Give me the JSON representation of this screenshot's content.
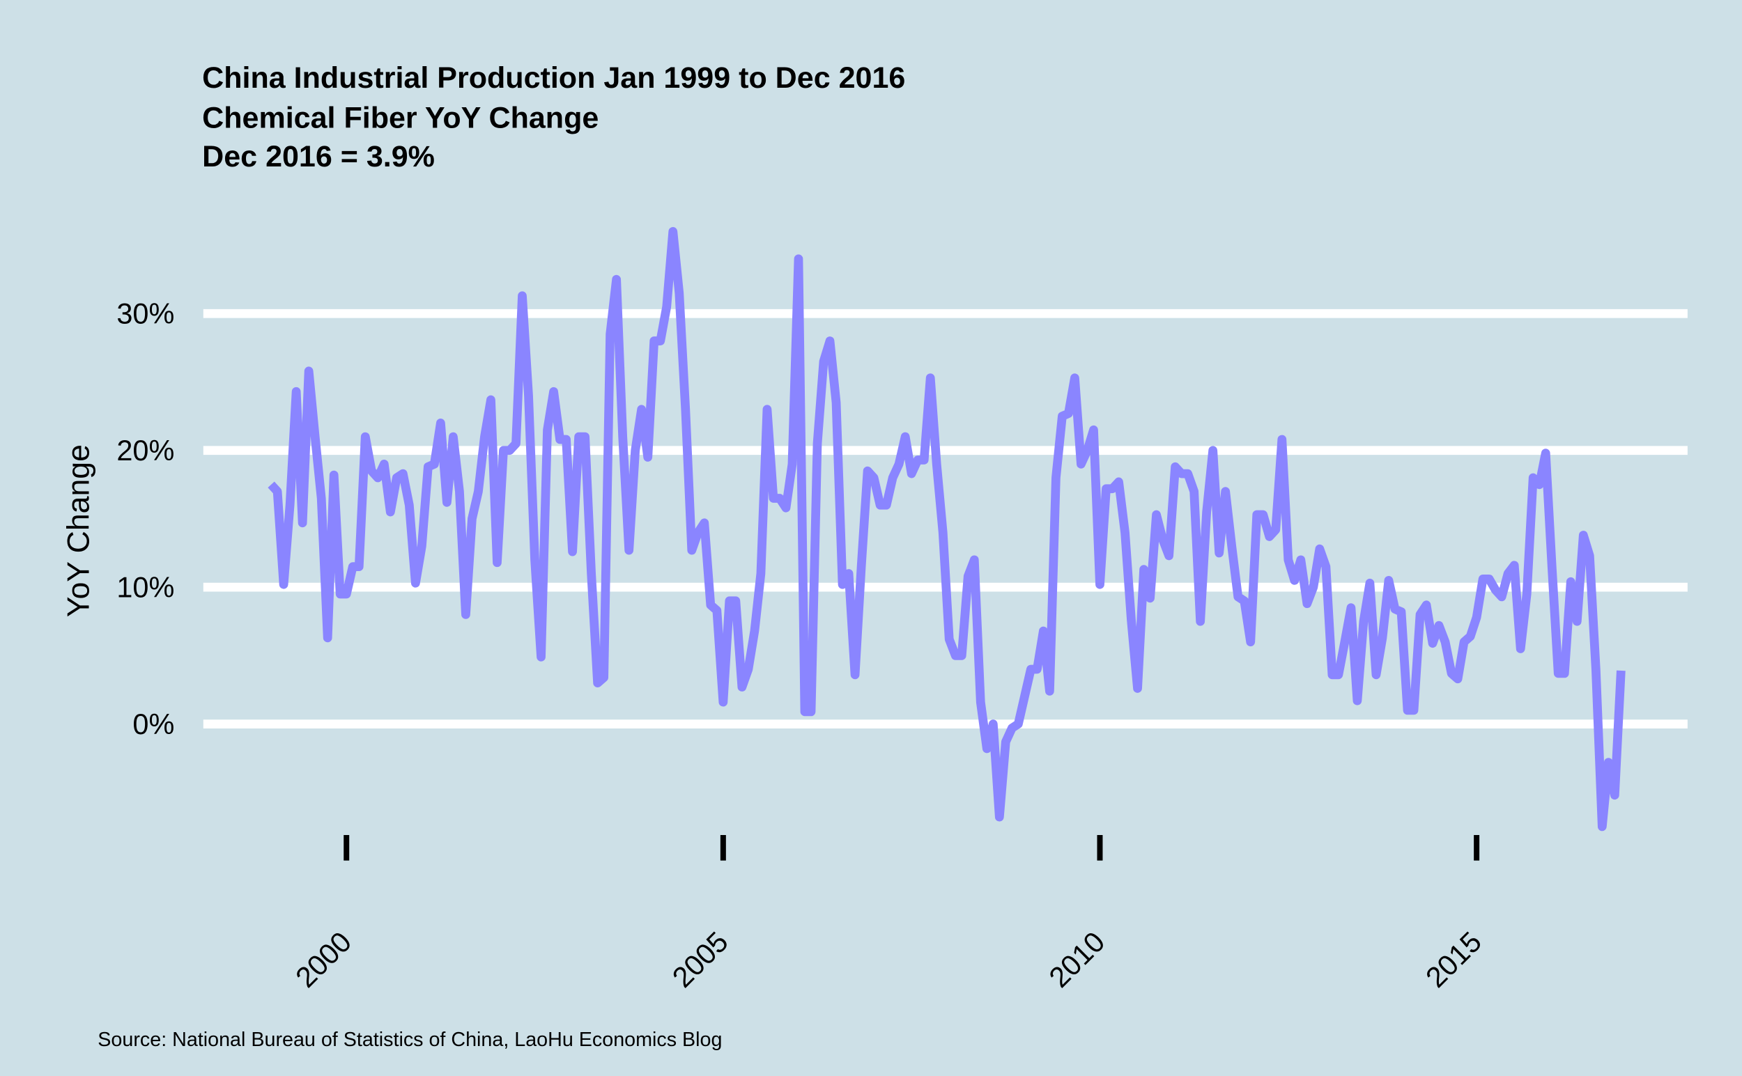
{
  "chart_data": {
    "type": "line",
    "title": [
      "China Industrial Production Jan 1999 to Dec 2016",
      "Chemical Fiber YoY Change",
      "Dec 2016 = 3.9%"
    ],
    "ylabel": "YoY Change",
    "caption": "Source: National Bureau of Statistics of China, LaoHu Economics Blog",
    "x": [
      "1999-01",
      "1999-02",
      "1999-03",
      "1999-04",
      "1999-05",
      "1999-06",
      "1999-07",
      "1999-08",
      "1999-09",
      "1999-10",
      "1999-11",
      "1999-12",
      "2000-01",
      "2000-02",
      "2000-03",
      "2000-04",
      "2000-05",
      "2000-06",
      "2000-07",
      "2000-08",
      "2000-09",
      "2000-10",
      "2000-11",
      "2000-12",
      "2001-01",
      "2001-02",
      "2001-03",
      "2001-04",
      "2001-05",
      "2001-06",
      "2001-07",
      "2001-08",
      "2001-09",
      "2001-10",
      "2001-11",
      "2001-12",
      "2002-01",
      "2002-02",
      "2002-03",
      "2002-04",
      "2002-05",
      "2002-06",
      "2002-07",
      "2002-08",
      "2002-09",
      "2002-10",
      "2002-11",
      "2002-12",
      "2003-01",
      "2003-02",
      "2003-03",
      "2003-04",
      "2003-05",
      "2003-06",
      "2003-07",
      "2003-08",
      "2003-09",
      "2003-10",
      "2003-11",
      "2003-12",
      "2004-01",
      "2004-02",
      "2004-03",
      "2004-04",
      "2004-05",
      "2004-06",
      "2004-07",
      "2004-08",
      "2004-09",
      "2004-10",
      "2004-11",
      "2004-12",
      "2005-01",
      "2005-02",
      "2005-03",
      "2005-04",
      "2005-05",
      "2005-06",
      "2005-07",
      "2005-08",
      "2005-09",
      "2005-10",
      "2005-11",
      "2005-12",
      "2006-01",
      "2006-02",
      "2006-03",
      "2006-04",
      "2006-05",
      "2006-06",
      "2006-07",
      "2006-08",
      "2006-09",
      "2006-10",
      "2006-11",
      "2006-12",
      "2007-01",
      "2007-02",
      "2007-03",
      "2007-04",
      "2007-05",
      "2007-06",
      "2007-07",
      "2007-08",
      "2007-09",
      "2007-10",
      "2007-11",
      "2007-12",
      "2008-01",
      "2008-02",
      "2008-03",
      "2008-04",
      "2008-05",
      "2008-06",
      "2008-07",
      "2008-08",
      "2008-09",
      "2008-10",
      "2008-11",
      "2008-12",
      "2009-01",
      "2009-02",
      "2009-03",
      "2009-04",
      "2009-05",
      "2009-06",
      "2009-07",
      "2009-08",
      "2009-09",
      "2009-10",
      "2009-11",
      "2009-12",
      "2010-01",
      "2010-02",
      "2010-03",
      "2010-04",
      "2010-05",
      "2010-06",
      "2010-07",
      "2010-08",
      "2010-09",
      "2010-10",
      "2010-11",
      "2010-12",
      "2011-01",
      "2011-02",
      "2011-03",
      "2011-04",
      "2011-05",
      "2011-06",
      "2011-07",
      "2011-08",
      "2011-09",
      "2011-10",
      "2011-11",
      "2011-12",
      "2012-01",
      "2012-02",
      "2012-03",
      "2012-04",
      "2012-05",
      "2012-06",
      "2012-07",
      "2012-08",
      "2012-09",
      "2012-10",
      "2012-11",
      "2012-12",
      "2013-01",
      "2013-02",
      "2013-03",
      "2013-04",
      "2013-05",
      "2013-06",
      "2013-07",
      "2013-08",
      "2013-09",
      "2013-10",
      "2013-11",
      "2013-12",
      "2014-01",
      "2014-02",
      "2014-03",
      "2014-04",
      "2014-05",
      "2014-06",
      "2014-07",
      "2014-08",
      "2014-09",
      "2014-10",
      "2014-11",
      "2014-12",
      "2015-01",
      "2015-02",
      "2015-03",
      "2015-04",
      "2015-05",
      "2015-06",
      "2015-07",
      "2015-08",
      "2015-09",
      "2015-10",
      "2015-11",
      "2015-12",
      "2016-01",
      "2016-02",
      "2016-03",
      "2016-04",
      "2016-05",
      "2016-06",
      "2016-07",
      "2016-08",
      "2016-09",
      "2016-10",
      "2016-11",
      "2016-12"
    ],
    "series": [
      {
        "name": "Chemical Fiber",
        "color": "#8a85ff",
        "values": [
          17.5,
          17,
          10.2,
          16,
          24.3,
          14.7,
          25.8,
          21,
          16.5,
          6.3,
          18.2,
          9.5,
          9.5,
          11.5,
          11.5,
          21,
          18.5,
          18,
          19,
          15.5,
          18,
          18.3,
          16,
          10.3,
          13,
          18.8,
          19,
          22,
          16.2,
          21,
          17,
          8,
          15,
          17,
          21,
          23.7,
          11.8,
          20,
          20,
          20.5,
          31.3,
          24,
          12,
          4.9,
          21.5,
          24.3,
          20.8,
          20.8,
          12.6,
          21,
          21,
          11,
          3,
          3.4,
          28.5,
          32.5,
          21,
          12.7,
          20,
          23,
          19.5,
          28,
          28,
          30.5,
          36,
          31.5,
          23,
          12.7,
          14,
          14.7,
          8.7,
          8.3,
          1.6,
          9,
          9,
          2.7,
          4,
          6.8,
          11,
          23,
          16.5,
          16.5,
          15.8,
          19,
          34,
          0.9,
          0.9,
          20.5,
          26.5,
          28,
          23.5,
          10.2,
          11,
          3.6,
          11.5,
          18.5,
          18,
          16,
          16,
          18,
          19,
          21,
          18.3,
          19.3,
          19.3,
          25.3,
          19,
          14,
          6.2,
          5,
          5,
          10.8,
          12,
          1.6,
          -1.8,
          0,
          -6.8,
          -1.3,
          -0.3,
          0,
          2,
          4,
          4,
          6.8,
          2.4,
          18,
          22.5,
          22.7,
          25.3,
          19,
          20,
          21.5,
          10.2,
          17.2,
          17.2,
          17.7,
          14,
          7.6,
          2.6,
          11.3,
          9.2,
          15.3,
          13.5,
          12.3,
          18.8,
          18.3,
          18.3,
          17,
          7.5,
          15.5,
          20,
          12.5,
          17,
          13,
          9.3,
          9,
          6,
          15.3,
          15.3,
          13.7,
          14.2,
          20.8,
          12,
          10.5,
          12,
          8.8,
          10,
          12.8,
          11.5,
          3.6,
          3.6,
          6,
          8.5,
          1.7,
          7.5,
          10.3,
          3.6,
          6.3,
          10.5,
          8.4,
          8.2,
          1,
          1,
          8,
          8.7,
          5.9,
          7.2,
          6,
          3.7,
          3.3,
          6,
          6.4,
          7.8,
          10.6,
          10.6,
          9.8,
          9.3,
          11,
          11.6,
          5.5,
          9.5,
          18,
          17.5,
          19.8,
          11.5,
          3.7,
          3.7,
          10.4,
          7.5,
          13.8,
          12.3,
          4,
          -7.5,
          -2.8,
          -5.2,
          3.9
        ]
      }
    ],
    "xlim": [
      1998.1,
      2017.8
    ],
    "xticks": [
      2000,
      2005,
      2010,
      2015
    ],
    "ylim": [
      -11.2,
      37.5
    ],
    "yticks": [
      {
        "value": 0,
        "label": "0%"
      },
      {
        "value": 10,
        "label": "10%"
      },
      {
        "value": 20,
        "label": "20%"
      },
      {
        "value": 30,
        "label": "30%"
      }
    ],
    "grid": true,
    "background": "#cde0e7"
  }
}
